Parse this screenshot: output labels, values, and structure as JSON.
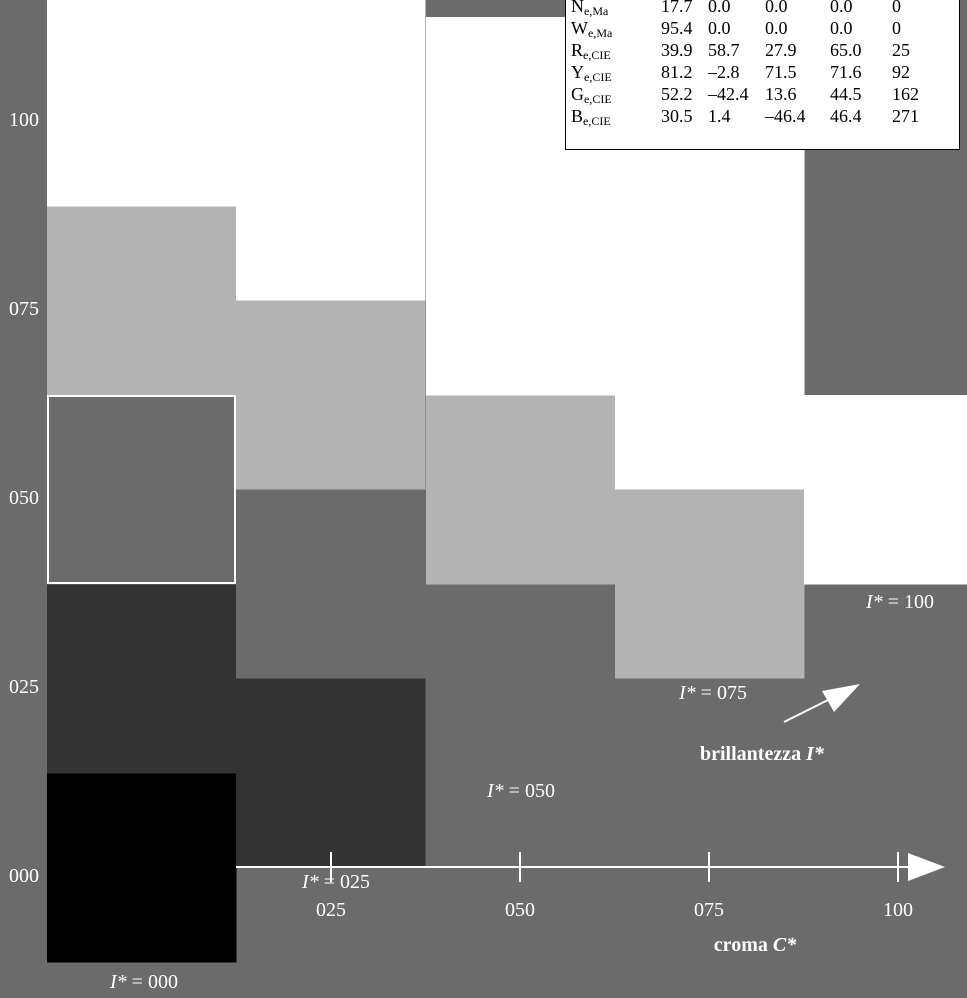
{
  "colors": {
    "background": "#6b6b6b",
    "axis": "#ffffff",
    "label": "#ffffff",
    "table_bg": "#ffffff",
    "table_text": "#000000",
    "highlight_border": "#ffffff"
  },
  "y_axis": {
    "ticks": [
      "100",
      "075",
      "050",
      "025",
      "000"
    ]
  },
  "x_axis": {
    "ticks": [
      "025",
      "050",
      "075",
      "100"
    ],
    "title_text": "croma ",
    "title_symbol": "C*"
  },
  "brightness_label": {
    "text": "brillantezza ",
    "symbol": "I*"
  },
  "series_labels": [
    {
      "prefix": "I*",
      "value": " = 000"
    },
    {
      "prefix": "I*",
      "value": " = 025"
    },
    {
      "prefix": "I*",
      "value": " = 050"
    },
    {
      "prefix": "I*",
      "value": " = 075"
    },
    {
      "prefix": "I*",
      "value": " = 100"
    }
  ],
  "columns": [
    {
      "name": "I*=000",
      "cells": [
        {
          "gray": "#000000"
        },
        {
          "gray": "#333333"
        },
        {
          "gray": "#6b6b6b",
          "highlight": true
        },
        {
          "gray": "#b3b3b3"
        },
        {
          "gray": "#ffffff"
        },
        {
          "gray": "#ffffff"
        }
      ]
    },
    {
      "name": "I*=025",
      "cells": [
        {
          "gray": "#333333"
        },
        {
          "gray": "#6b6b6b"
        },
        {
          "gray": "#b3b3b3"
        },
        {
          "gray": "#ffffff"
        },
        {
          "gray": "#ffffff"
        }
      ]
    },
    {
      "name": "I*=050",
      "cells": [
        {
          "gray": "#6b6b6b"
        },
        {
          "gray": "#b3b3b3"
        },
        {
          "gray": "#ffffff"
        },
        {
          "gray": "#ffffff"
        }
      ]
    },
    {
      "name": "I*=075",
      "cells": [
        {
          "gray": "#b3b3b3"
        },
        {
          "gray": "#ffffff"
        },
        {
          "gray": "#ffffff"
        }
      ]
    },
    {
      "name": "I*=100",
      "cells": [
        {
          "gray": "#ffffff"
        }
      ]
    }
  ],
  "table": {
    "rows": [
      {
        "main": "N",
        "sub": "e,Ma",
        "values": [
          "17.7",
          "0.0",
          "0.0",
          "0.0",
          "0"
        ]
      },
      {
        "main": "W",
        "sub": "e,Ma",
        "values": [
          "95.4",
          "0.0",
          "0.0",
          "0.0",
          "0"
        ]
      },
      {
        "main": "R",
        "sub": "e,CIE",
        "values": [
          "39.9",
          "58.7",
          "27.9",
          "65.0",
          "25"
        ]
      },
      {
        "main": "Y",
        "sub": "e,CIE",
        "values": [
          "81.2",
          "–2.8",
          "71.5",
          "71.6",
          "92"
        ]
      },
      {
        "main": "G",
        "sub": "e,CIE",
        "values": [
          "52.2",
          "–42.4",
          "13.6",
          "44.5",
          "162"
        ]
      },
      {
        "main": "B",
        "sub": "e,CIE",
        "values": [
          "30.5",
          "1.4",
          "–46.4",
          "46.4",
          "271"
        ]
      }
    ]
  }
}
